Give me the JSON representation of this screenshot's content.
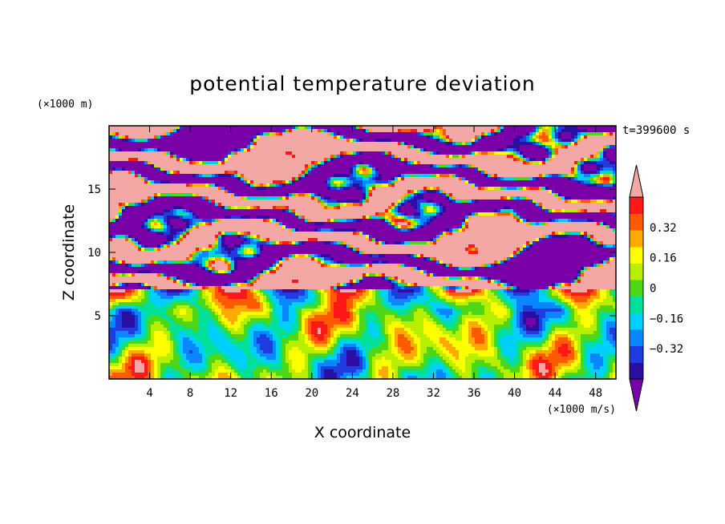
{
  "chart_data": {
    "type": "heatmap",
    "title": "potential temperature deviation",
    "xlabel": "X coordinate",
    "ylabel": "Z coordinate",
    "x_unit": "(×1000 m/s)",
    "y_unit": "(×1000 m)",
    "time_label": "t=399600 s",
    "x_ticks": [
      4,
      8,
      12,
      16,
      20,
      24,
      28,
      32,
      36,
      40,
      44,
      48
    ],
    "y_ticks": [
      5,
      10,
      15
    ],
    "xlim": [
      0,
      50
    ],
    "ylim": [
      0,
      20
    ],
    "colorbar": {
      "tick_values": [
        0.32,
        0.16,
        0,
        -0.16,
        -0.32
      ],
      "tick_labels": [
        "0.32",
        "0.16",
        "0",
        "−0.16",
        "−0.32"
      ],
      "levels": [
        -0.48,
        -0.4,
        -0.32,
        -0.24,
        -0.16,
        -0.08,
        0,
        0.08,
        0.16,
        0.24,
        0.32,
        0.4,
        0.48
      ],
      "colors": [
        "#7a00a8",
        "#2a0fa0",
        "#1f3ce0",
        "#0a86ff",
        "#00d0ff",
        "#00e09a",
        "#4cd818",
        "#b8ef00",
        "#ffff00",
        "#ffaa00",
        "#ff5a00",
        "#ff1818",
        "#f4a8a6"
      ],
      "extend": "both"
    }
  }
}
